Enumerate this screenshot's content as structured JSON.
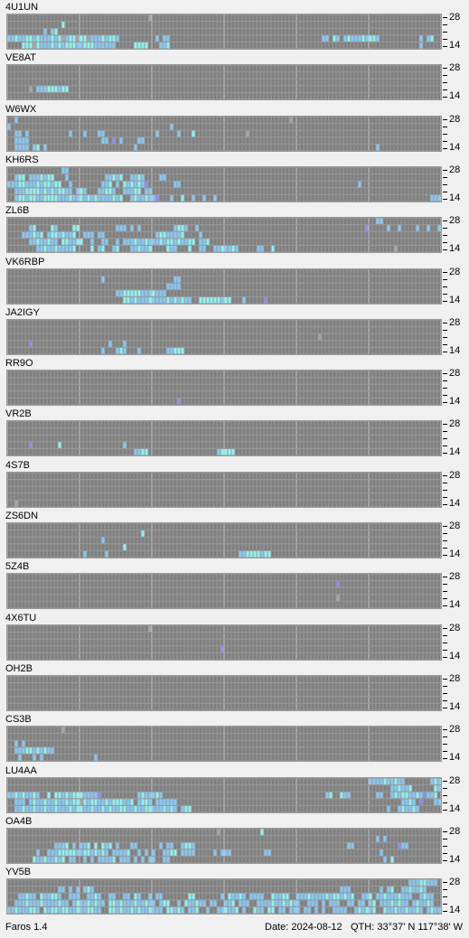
{
  "app": {
    "name": "Faros 1.4"
  },
  "status": {
    "date": "Date: 2024-08-12",
    "qth": "QTH: 33°37' N  117°38' W"
  },
  "axis": {
    "top_label": "28",
    "bottom_label": "14"
  },
  "colors": {
    "background": "#f0f0f0",
    "grid_bg": "#8a8a8a",
    "cell_empty": "#7f7f7f",
    "cell_gray": "#a6a6a6",
    "cell_cyan": "#8ef3f0",
    "cell_blue": "#86c8f5",
    "cell_green": "#9af7b6",
    "cell_purple": "#8f8cf2"
  },
  "beacons": [
    {
      "call": "4U1UN",
      "rows": [
        ".......................................G............................................................................",
        "...............C...............................................................................................",
        "..........B.BC...............................................................................................",
        "BBCBBCCBCBBBCBCGBCCGCCGBBBCBCCB..........B.BB..........................................BB.CB.BCBBBCBCCB...........B.BC.",
        "....CCCGCBBBCBCBCCCBBCCCBBBBBB.....CCCC...BBC.....................................................................B.....C."
      ]
    },
    {
      "call": "VE8AT",
      "rows": [
        "",
        "",
        "",
        "......G.BBBCCCBCC...",
        ""
      ]
    },
    {
      "call": "W6WX",
      "rows": [
        "..B...........................................................................G......",
        "B............................................B..........................................",
        "..BB.B...........B...B...BB..............B.....B...C..............G...............",
        "..BBBB....................BB.P.B....BB..................................................",
        "..BBBB.BC.B........................B..................................................................B."
      ]
    },
    {
      "call": "KH6RS",
      "rows": [
        "...............BB.........................",
        "..BCC.BBBCBCC...B..........BBCBC..BBCB....BB.......",
        "BBBCCBBBCBCCBCC..B........BBC.B.CBCBCBP.......BB.................................................B",
        "..BBBCCCCBCBCBCCBB.BCB...BBCCB..BBBCC.BB.................................................",
        "..BCCBCCBBCCCCBBBCBBCBCBCBBBBCBC..BCBBCBBP...B..C..B..B..B...........................................................BBBB.CBCBCBB."
      ]
    },
    {
      "call": "ZL6B",
      "rows": [
        "......................................................................................................BB.................B.................B.C",
        "......BC....CB....CC..........BBB.B.B.........BCCB..B..............................................P.....B..B....B..B..B",
        "....BBBCBC.BCCBCBBC..BBB.BB..............BCCBBBBC....B.............................................................",
        "......BBCBBCBB.CCBBCC..B..BB..B.BBBCBBCBBBCBCCBCBBCC.BBC...........................................",
        "........BBCBBCBBBBC....C.BC..BC...BBCBBC....CBB...C..BB..BBCBBCB.....BB..C.................................G"
      ]
    },
    {
      "call": "VK6RBP",
      "rows": [
        "",
        "..........................B...................BB..",
        "............................................BBBB.",
        "..............................BBCCCCCBBBCBBB..........",
        "................................CCBCBBBCBBBBCBCBCBB..CCCCCCBCC...B.....P."
      ]
    },
    {
      "call": "JA2IGY",
      "rows": [
        "",
        "",
        "......................................................................................G",
        "......P.....................B...B.........................................",
        "..........................B...BCB...B.......BBCCC...................."
      ]
    },
    {
      "call": "RR9O",
      "rows": [
        "",
        "",
        "",
        "",
        "...............................................P"
      ]
    },
    {
      "call": "VR2B",
      "rows": [
        "",
        "",
        "",
        "......P.......C.................B..................",
        "...................................BBCC...................BCCCC......"
      ]
    },
    {
      "call": "4S7B",
      "rows": [
        "",
        "",
        "",
        "",
        "..G"
      ]
    },
    {
      "call": "ZS6DN",
      "rows": [
        "",
        ".....................................C.....",
        "..........................B........................................",
        "................................C.....",
        ".....................B.....B....................................BBCCCCBCC"
      ]
    },
    {
      "call": "5Z4B",
      "rows": [
        "",
        "...........................................................................................P",
        "",
        "...........................................................................................G",
        ""
      ]
    },
    {
      "call": "4X6TU",
      "rows": [
        ".......................................G",
        "",
        "",
        "...........................................................P",
        ""
      ]
    },
    {
      "call": "OH2B",
      "rows": [
        "",
        "",
        "",
        "",
        ""
      ]
    },
    {
      "call": "CS3B",
      "rows": [
        "...............G",
        "",
        "..B.B",
        "..BBBCCBCBCBB....",
        "...B...B.B..............B"
      ]
    },
    {
      "call": "LU4AA",
      "rows": [
        "....................................................................................................BBBBCBBCBB.......BCB.BCBBCBCB.B",
        "..........................................................................................................BBCBBC......CB.BBCBBCBBCBBB",
        "BBCBCBBCB..C.CCBCBCCCBBBBP..........BCBBBCB.............................................BC..CBB.......BB..BCBCCBBCBPBBC",
        "..BBB.BCBBCBBCBBCBCCGCBCCBBCBCCCBBC.BCCB.BBBBBB..............................................................BBCB.P...BBCC",
        "..BBCBBCBBCBBCBBBCBCCBBCBBCBCBBCCBBCBBCCBBBCBCB.BCC......................................................B..BCBBCB..."
      ]
    },
    {
      "call": "OA4B",
      "rows": [
        "..........................................................G...........C.............................................................",
        "......................................................................................................B.B...............",
        ".............BBBC.B.BBC.C.CBC.B...BB......B.BB..BCCB..........................................BB............PBB........",
        "........B..BBBCCCCCBBCCBCBCB.BBBBC..B.B.B..BBCC.BBBB.....B.BBB.........BB..............................B.............",
        ".......CBBCBBCBC.BB..B.B.BBBBC.BBB.B.B.BB..BB...........................................................B.C....................."
      ]
    },
    {
      "call": "YV5B",
      "rows": [
        "...............................................................................................................BBBCCBBB",
        "..............BB.B.B.BCB....................................................................BBB........B.BC..BBCBBCB...",
        "...BBCBB.CBBCCB..BBB..BBCB..BB..BB.CB..B.BB.......CC.......B.CBBCB.BBBB..CBBCC..BBBCBBBBCBCCBCBC..BBC.BBCBBBCBBB..BCBB",
        "..BBBCBBBCBBBBCBB.BCBBCBCBB.CCBCBBBCBBCBB.BCC..B.CBBCBB.BB..BBC.BBB..BBBBCBBCBCBB..BBB.B.BBB..BB.BB.BC.BBBCBCBB.BCBBCB",
        "BBCBBBCCB.CBCCBCCBBCBBCCBB..CCBCBBCBCBBCBBB.CCBCB.BBC..B..BBCBBC.B..CBB.CC.BB.BBB.BB.B.B..BBBB..BCBCBC..CBBCBBCBBCB.BCBB"
      ]
    }
  ]
}
